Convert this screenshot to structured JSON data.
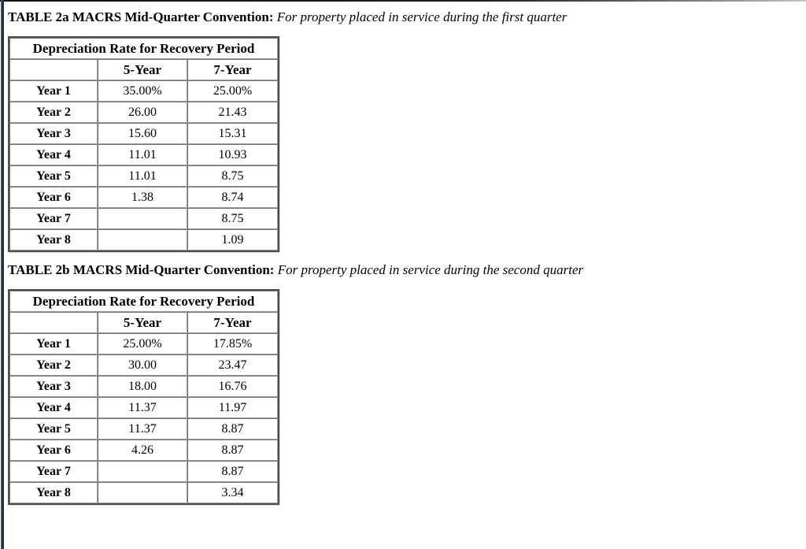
{
  "tables": [
    {
      "id": "2a",
      "title_bold": "TABLE 2a MACRS Mid-Quarter Convention:",
      "title_italic": "For property placed in service during the first quarter",
      "panel_header": "Depreciation Rate for Recovery Period",
      "col_headers": [
        "5-Year",
        "7-Year"
      ],
      "rows": [
        {
          "label": "Year 1",
          "values": [
            "35.00%",
            "25.00%"
          ]
        },
        {
          "label": "Year 2",
          "values": [
            "26.00",
            "21.43"
          ]
        },
        {
          "label": "Year 3",
          "values": [
            "15.60",
            "15.31"
          ]
        },
        {
          "label": "Year 4",
          "values": [
            "11.01",
            "10.93"
          ]
        },
        {
          "label": "Year 5",
          "values": [
            "11.01",
            "8.75"
          ]
        },
        {
          "label": "Year 6",
          "values": [
            "1.38",
            "8.74"
          ]
        },
        {
          "label": "Year 7",
          "values": [
            "",
            "8.75"
          ]
        },
        {
          "label": "Year 8",
          "values": [
            "",
            "1.09"
          ]
        }
      ]
    },
    {
      "id": "2b",
      "title_bold": "TABLE 2b MACRS Mid-Quarter Convention:",
      "title_italic": "For property placed in service during the second quarter",
      "panel_header": "Depreciation Rate for Recovery Period",
      "col_headers": [
        "5-Year",
        "7-Year"
      ],
      "rows": [
        {
          "label": "Year 1",
          "values": [
            "25.00%",
            "17.85%"
          ]
        },
        {
          "label": "Year 2",
          "values": [
            "30.00",
            "23.47"
          ]
        },
        {
          "label": "Year 3",
          "values": [
            "18.00",
            "16.76"
          ]
        },
        {
          "label": "Year 4",
          "values": [
            "11.37",
            "11.97"
          ]
        },
        {
          "label": "Year 5",
          "values": [
            "11.37",
            "8.87"
          ]
        },
        {
          "label": "Year 6",
          "values": [
            "4.26",
            "8.87"
          ]
        },
        {
          "label": "Year 7",
          "values": [
            "",
            "8.87"
          ]
        },
        {
          "label": "Year 8",
          "values": [
            "",
            "3.34"
          ]
        }
      ]
    }
  ]
}
